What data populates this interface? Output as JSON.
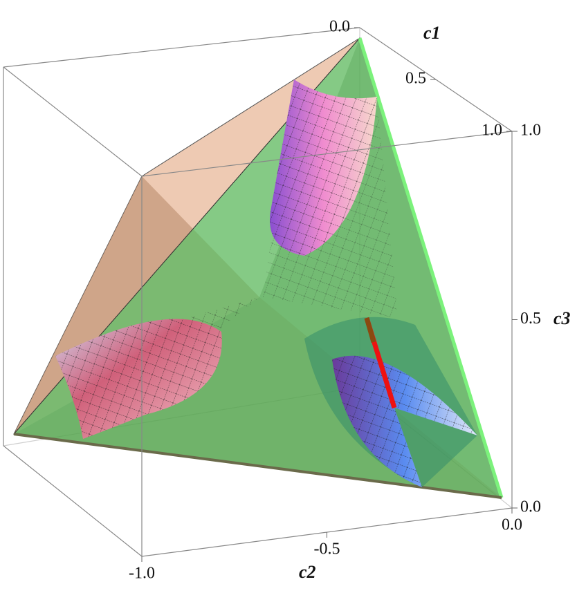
{
  "chart_data": {
    "type": "surface3d",
    "x_label": "c1",
    "y_label": "c2",
    "z_label": "c3",
    "xlim": [
      0,
      1
    ],
    "ylim": [
      -1,
      0
    ],
    "zlim": [
      0,
      1
    ],
    "xticks": [
      {
        "value": 0,
        "label": "0.0"
      },
      {
        "value": 0.5,
        "label": "0.5"
      },
      {
        "value": 1,
        "label": "1.0"
      }
    ],
    "yticks": [
      {
        "value": -1,
        "label": "-1.0"
      },
      {
        "value": -0.5,
        "label": "-0.5"
      },
      {
        "value": 0,
        "label": "0.0"
      }
    ],
    "zticks": [
      {
        "value": 0,
        "label": "0.0"
      },
      {
        "value": 0.5,
        "label": "0.5"
      },
      {
        "value": 1,
        "label": "1.0"
      }
    ]
  }
}
